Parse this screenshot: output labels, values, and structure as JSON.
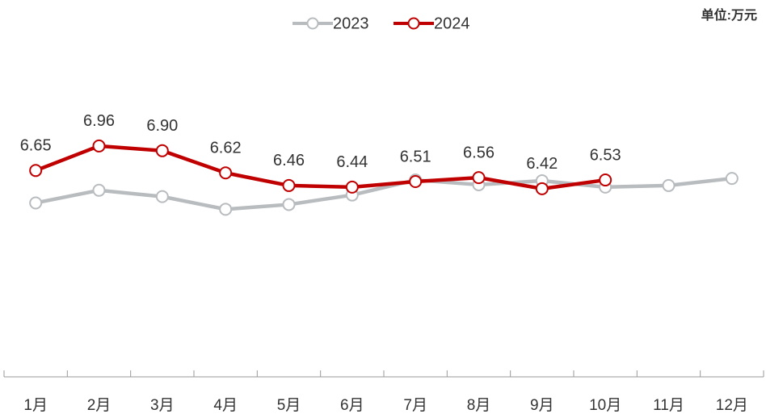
{
  "chart_data": {
    "type": "line",
    "unit_label": "单位:万元",
    "categories": [
      "1月",
      "2月",
      "3月",
      "4月",
      "5月",
      "6月",
      "7月",
      "8月",
      "9月",
      "10月",
      "11月",
      "12月"
    ],
    "series": [
      {
        "name": "2023",
        "color": "#b8bcbf",
        "values": [
          6.24,
          6.4,
          6.32,
          6.16,
          6.22,
          6.34,
          6.53,
          6.47,
          6.52,
          6.44,
          6.46,
          6.55
        ]
      },
      {
        "name": "2024",
        "color": "#c00000",
        "values": [
          6.65,
          6.96,
          6.9,
          6.62,
          6.46,
          6.44,
          6.51,
          6.56,
          6.42,
          6.53,
          null,
          null
        ],
        "value_labels": [
          "6.65",
          "6.96",
          "6.90",
          "6.62",
          "6.46",
          "6.44",
          "6.51",
          "6.56",
          "6.42",
          "6.53",
          null,
          null
        ]
      }
    ],
    "ylim": [
      4,
      7.5
    ],
    "legend": "top"
  }
}
